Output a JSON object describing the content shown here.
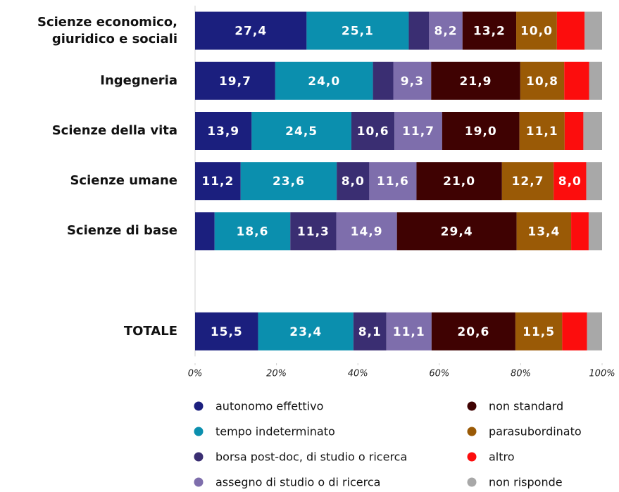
{
  "chart_data": {
    "type": "stacked-bar-horizontal",
    "categories": [
      "Scienze economico, giuridico e sociali",
      "Ingegneria",
      "Scienze della vita",
      "Scienze umane",
      "Scienze di base",
      null,
      "TOTALE"
    ],
    "series": [
      {
        "name": "autonomo effettivo",
        "color": "#1b1f7e",
        "values": [
          27.4,
          19.7,
          13.9,
          11.2,
          4.8,
          null,
          15.5
        ],
        "value_labels": [
          "27,4",
          "19,7",
          "13,9",
          "11,2",
          null,
          null,
          "15,5"
        ]
      },
      {
        "name": "tempo indeterminato",
        "color": "#0b8fae",
        "values": [
          25.1,
          24.0,
          24.5,
          23.6,
          18.6,
          null,
          23.4
        ],
        "value_labels": [
          "25,1",
          "24,0",
          "24,5",
          "23,6",
          "18,6",
          null,
          "23,4"
        ]
      },
      {
        "name": "borsa post-doc, di studio o ricerca",
        "color": "#3a2e72",
        "values": [
          5.0,
          5.0,
          10.6,
          8.0,
          11.3,
          null,
          8.1
        ],
        "value_labels": [
          null,
          null,
          "10,6",
          "8,0",
          "11,3",
          null,
          "8,1"
        ]
      },
      {
        "name": "assegno di studio o di ricerca",
        "color": "#7e6eac",
        "values": [
          8.2,
          9.3,
          11.7,
          11.6,
          14.9,
          null,
          11.1
        ],
        "value_labels": [
          "8,2",
          "9,3",
          "11,7",
          "11,6",
          "14,9",
          null,
          "11,1"
        ]
      },
      {
        "name": "non standard",
        "color": "#3f0202",
        "values": [
          13.2,
          21.9,
          19.0,
          21.0,
          29.4,
          null,
          20.6
        ],
        "value_labels": [
          "13,2",
          "21,9",
          "19,0",
          "21,0",
          "29,4",
          null,
          "20,6"
        ]
      },
      {
        "name": "parasubordinato",
        "color": "#9a5a06",
        "values": [
          10.0,
          10.8,
          11.1,
          12.7,
          13.4,
          null,
          11.5
        ],
        "value_labels": [
          "10,0",
          "10,8",
          "11,1",
          "12,7",
          "13,4",
          null,
          "11,5"
        ]
      },
      {
        "name": "altro",
        "color": "#fc0d0d",
        "values": [
          6.8,
          6.1,
          4.6,
          8.0,
          4.3,
          null,
          6.1
        ],
        "value_labels": [
          null,
          null,
          null,
          "8,0",
          null,
          null,
          null
        ]
      },
      {
        "name": "non risponde",
        "color": "#a8a8a8",
        "values": [
          4.3,
          3.2,
          4.6,
          3.9,
          3.3,
          null,
          3.7
        ],
        "value_labels": [
          null,
          null,
          null,
          null,
          null,
          null,
          null
        ]
      }
    ],
    "xlim": [
      0,
      100
    ],
    "xticks": [
      {
        "value": 0,
        "label": "0%"
      },
      {
        "value": 20,
        "label": "20%"
      },
      {
        "value": 40,
        "label": "40%"
      },
      {
        "value": 60,
        "label": "60%"
      },
      {
        "value": 80,
        "label": "80%"
      },
      {
        "value": 100,
        "label": "100%"
      }
    ],
    "grid": false
  }
}
